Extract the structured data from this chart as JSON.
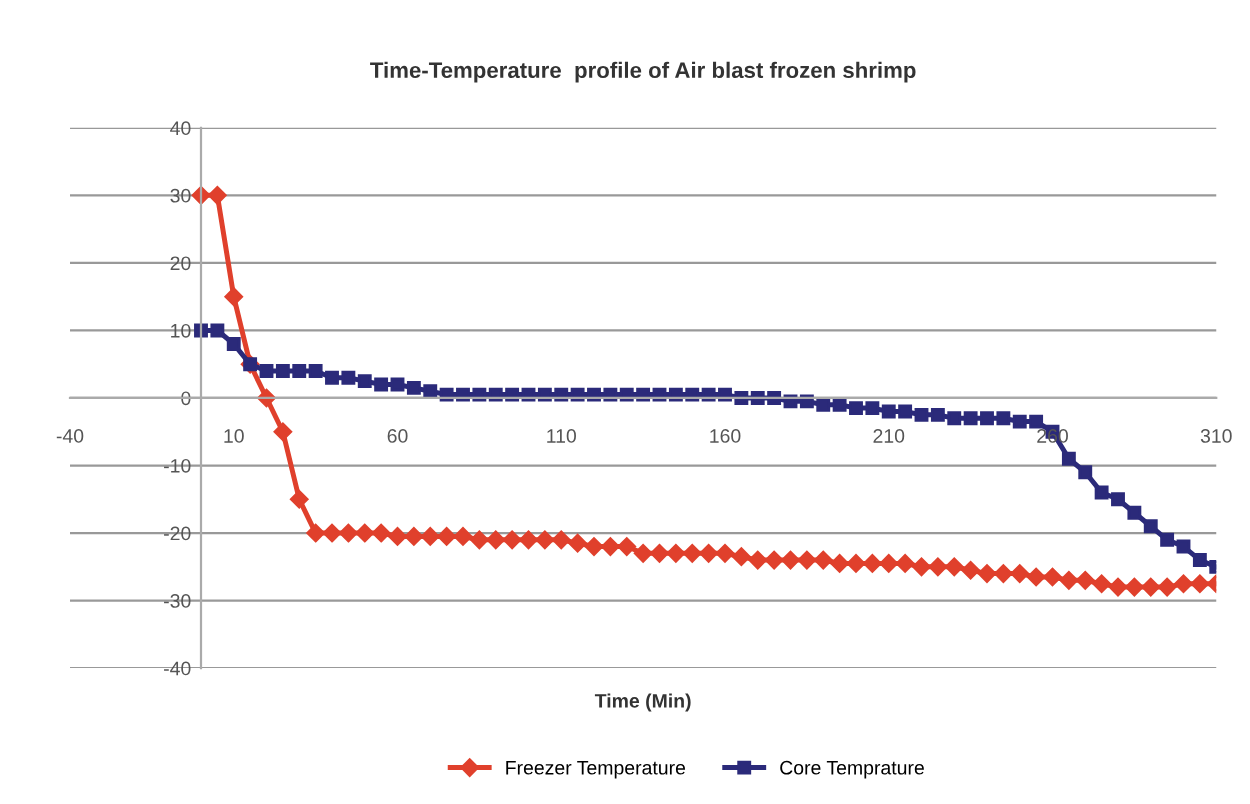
{
  "chart_data": {
    "type": "line",
    "title": "Time-Temperature  profile of Air blast frozen shrimp",
    "xlabel": "Time (Min)",
    "x": [
      0,
      5,
      10,
      15,
      20,
      25,
      30,
      35,
      40,
      45,
      50,
      55,
      60,
      65,
      70,
      75,
      80,
      85,
      90,
      95,
      100,
      105,
      110,
      115,
      120,
      125,
      130,
      135,
      140,
      145,
      150,
      155,
      160,
      165,
      170,
      175,
      180,
      185,
      190,
      195,
      200,
      205,
      210,
      215,
      220,
      225,
      230,
      235,
      240,
      245,
      250,
      255,
      260,
      265,
      270,
      275,
      280,
      285,
      290,
      295,
      300,
      305,
      310
    ],
    "series": [
      {
        "name": "Freezer Temperature",
        "color": "#e0402c",
        "marker": "diamond",
        "values": [
          30,
          30,
          15,
          5,
          0,
          -5,
          -15,
          -20,
          -20,
          -20,
          -20,
          -20,
          -20.5,
          -20.5,
          -20.5,
          -20.5,
          -20.5,
          -21,
          -21,
          -21,
          -21,
          -21,
          -21,
          -21.5,
          -22,
          -22,
          -22,
          -23,
          -23,
          -23,
          -23,
          -23,
          -23,
          -23.5,
          -24,
          -24,
          -24,
          -24,
          -24,
          -24.5,
          -24.5,
          -24.5,
          -24.5,
          -24.5,
          -25,
          -25,
          -25,
          -25.5,
          -26,
          -26,
          -26,
          -26.5,
          -26.5,
          -27,
          -27,
          -27.5,
          -28,
          -28,
          -28,
          -28,
          -27.5,
          -27.5,
          -27.5
        ]
      },
      {
        "name": "Core Temprature",
        "color": "#2b2a7a",
        "marker": "square",
        "values": [
          10,
          10,
          8,
          5,
          4,
          4,
          4,
          4,
          3,
          3,
          2.5,
          2,
          2,
          1.5,
          1,
          0.5,
          0.5,
          0.5,
          0.5,
          0.5,
          0.5,
          0.5,
          0.5,
          0.5,
          0.5,
          0.5,
          0.5,
          0.5,
          0.5,
          0.5,
          0.5,
          0.5,
          0.5,
          0,
          0,
          0,
          -0.5,
          -0.5,
          -1,
          -1,
          -1.5,
          -1.5,
          -2,
          -2,
          -2.5,
          -2.5,
          -3,
          -3,
          -3,
          -3,
          -3.5,
          -3.5,
          -5,
          -9,
          -11,
          -14,
          -15,
          -17,
          -19,
          -21,
          -22,
          -24,
          -25
        ]
      }
    ],
    "xlim": [
      -40,
      310
    ],
    "xticks": [
      -40,
      10,
      60,
      110,
      160,
      210,
      260,
      310
    ],
    "ylim": [
      -40,
      40
    ],
    "yticks": [
      -40,
      -30,
      -20,
      -10,
      0,
      10,
      20,
      30,
      40
    ],
    "grid": "y",
    "legend": "bottom",
    "line_style": "solid"
  }
}
